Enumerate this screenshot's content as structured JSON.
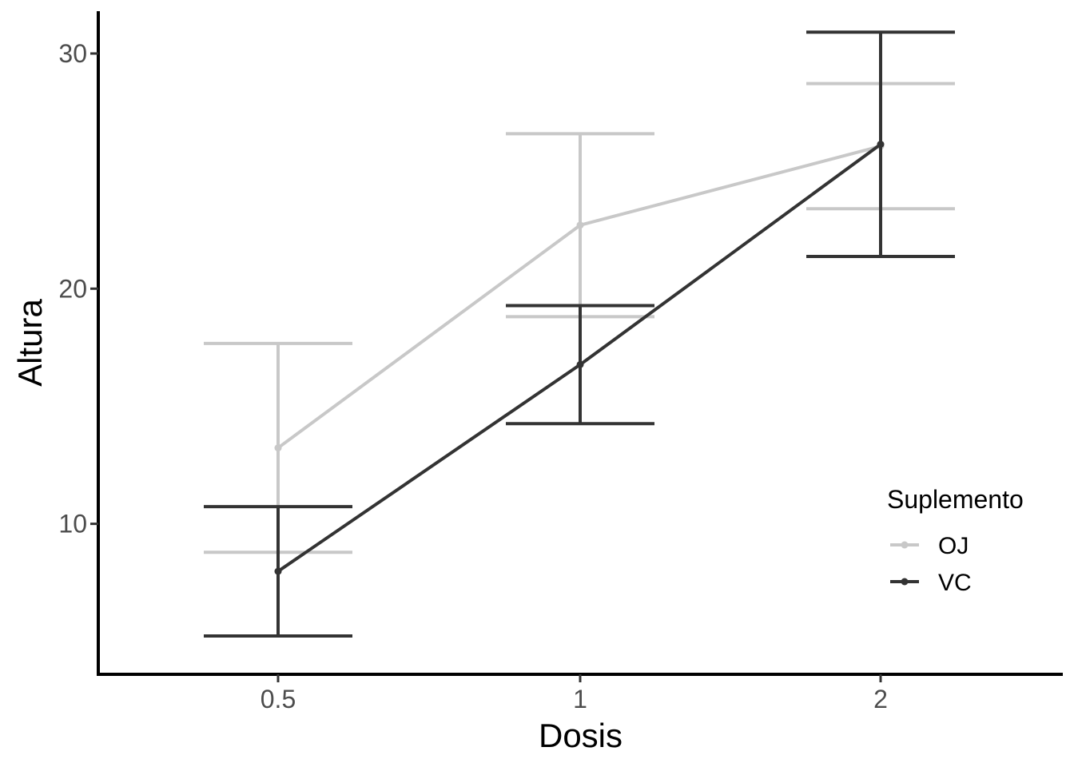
{
  "chart_data": {
    "type": "line",
    "xlabel": "Dosis",
    "ylabel": "Altura",
    "categories": [
      "0.5",
      "1",
      "2"
    ],
    "ylim": [
      3.6,
      31.8
    ],
    "yticks": [
      10,
      20,
      30
    ],
    "grid": false,
    "legend": {
      "title": "Suplemento",
      "position": "right"
    },
    "series": [
      {
        "name": "OJ",
        "color": "#c8c8c8",
        "values": [
          13.23,
          22.7,
          26.06
        ],
        "error_low": [
          8.79,
          18.81,
          23.4
        ],
        "error_high": [
          17.67,
          26.59,
          28.72
        ]
      },
      {
        "name": "VC",
        "color": "#333333",
        "values": [
          7.98,
          16.77,
          26.14
        ],
        "error_low": [
          5.23,
          14.26,
          21.37
        ],
        "error_high": [
          10.73,
          19.28,
          30.91
        ]
      }
    ]
  }
}
